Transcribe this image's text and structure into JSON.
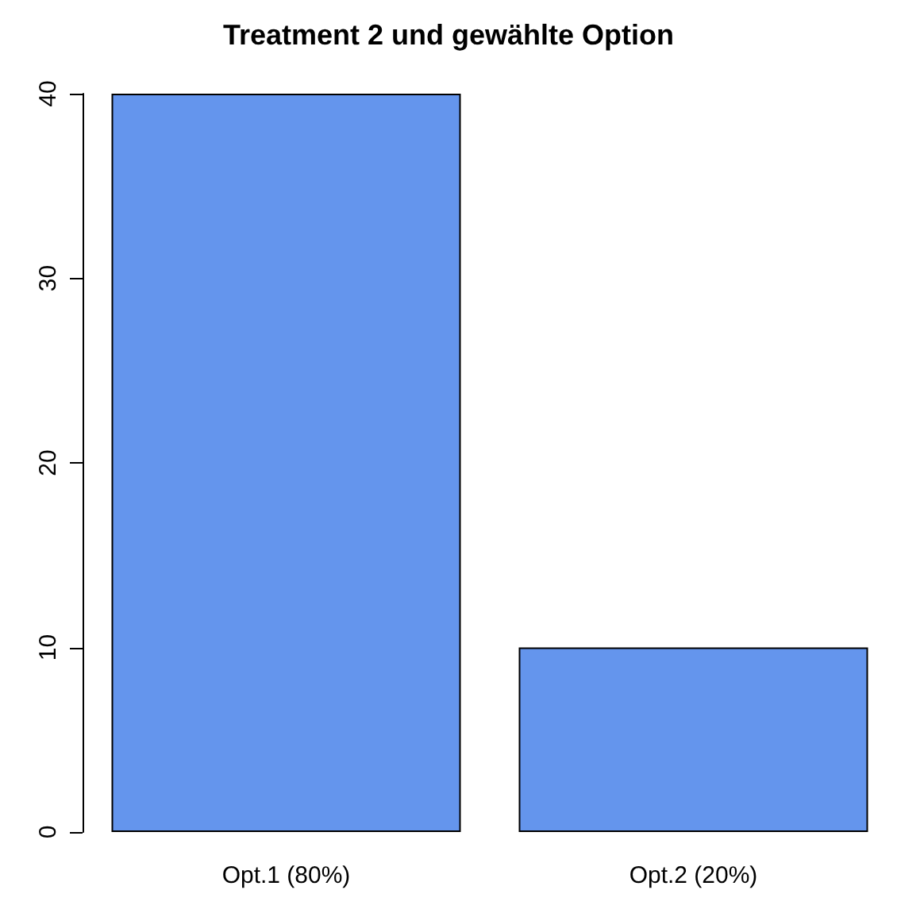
{
  "chart_data": {
    "type": "bar",
    "title": "Treatment 2 und gewählte Option",
    "categories": [
      "Opt.1 (80%)",
      "Opt.2 (20%)"
    ],
    "values": [
      40,
      10
    ],
    "color": "#6495ed",
    "ylim": [
      0,
      40
    ],
    "yticks": [
      0,
      10,
      20,
      30,
      40
    ]
  }
}
